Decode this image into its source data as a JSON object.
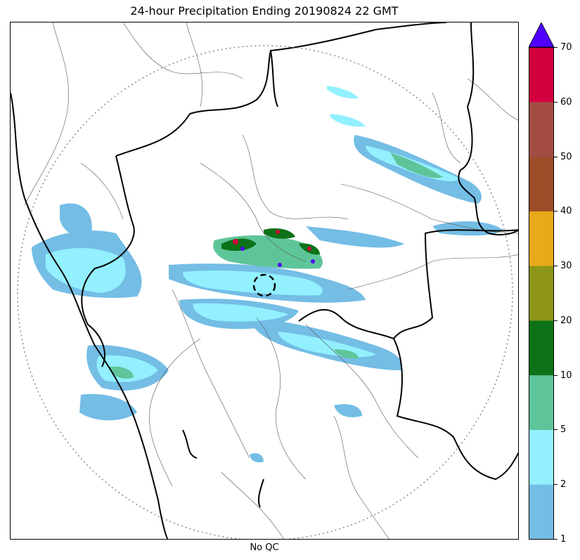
{
  "title": "24-hour Precipitation Ending 20190824 22 GMT",
  "xlabel": "No QC",
  "colorbar": {
    "bounds": [
      "1",
      "2",
      "5",
      "10",
      "20",
      "30",
      "40",
      "50",
      "60",
      "70"
    ],
    "colors": [
      "#74BDE5",
      "#92F0FF",
      "#5EC59A",
      "#0D7217",
      "#8D9616",
      "#E6AA1A",
      "#9B4D28",
      "#A44D45",
      "#D3003F"
    ],
    "extend_color": "#4F00FF"
  },
  "chart_data": {
    "type": "heatmap",
    "title": "24-hour Precipitation Ending 20190824 22 GMT",
    "xlabel": "No QC",
    "colorbar_levels": [
      1,
      2,
      5,
      10,
      20,
      30,
      40,
      50,
      60,
      70
    ],
    "colorbar_extend": "max",
    "radar_range_ring": "dotted circle",
    "radar_site_marker": "dashed circle"
  }
}
